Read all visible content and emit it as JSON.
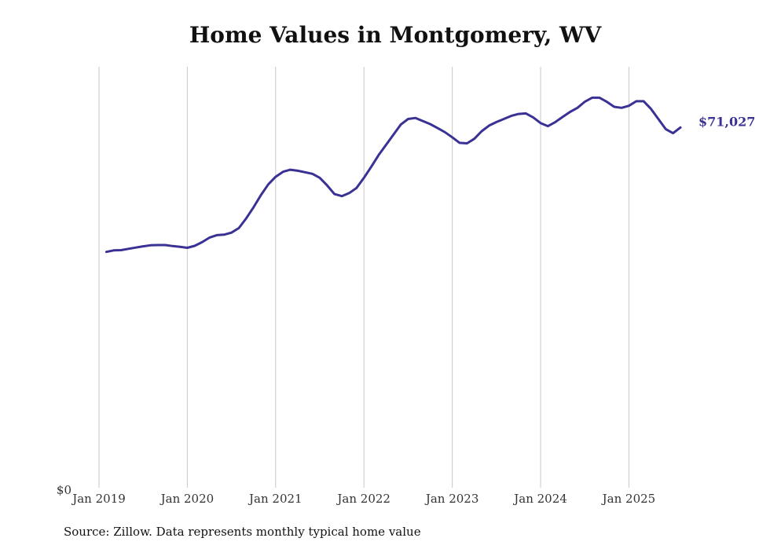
{
  "chart_data": {
    "type": "line",
    "title": "Home Values in Montgomery, WV",
    "xlabel": "",
    "ylabel": "",
    "x_ticks": [
      "Jan 2019",
      "Jan 2020",
      "Jan 2021",
      "Jan 2022",
      "Jan 2023",
      "Jan 2024",
      "Jan 2025"
    ],
    "y_ticks": [
      "$0"
    ],
    "ylim": [
      0,
      83000
    ],
    "grid": "vertical",
    "color": "#3a3194",
    "end_label": "$71,027",
    "series": [
      {
        "x": [
          "2019-02",
          "2019-03",
          "2019-04",
          "2019-05",
          "2019-06",
          "2019-07",
          "2019-08",
          "2019-09",
          "2019-10",
          "2019-11",
          "2019-12",
          "2020-01",
          "2020-02",
          "2020-03",
          "2020-04",
          "2020-05",
          "2020-06",
          "2020-07",
          "2020-08",
          "2020-09",
          "2020-10",
          "2020-11",
          "2020-12",
          "2021-01",
          "2021-02",
          "2021-03",
          "2021-04",
          "2021-05",
          "2021-06",
          "2021-07",
          "2021-08",
          "2021-09",
          "2021-10",
          "2021-11",
          "2021-12",
          "2022-01",
          "2022-02",
          "2022-03",
          "2022-04",
          "2022-05",
          "2022-06",
          "2022-07",
          "2022-08",
          "2022-09",
          "2022-10",
          "2022-11",
          "2022-12",
          "2023-01",
          "2023-02",
          "2023-03",
          "2023-04",
          "2023-05",
          "2023-06",
          "2023-07",
          "2023-08",
          "2023-09",
          "2023-10",
          "2023-11",
          "2023-12",
          "2024-01",
          "2024-02",
          "2024-03",
          "2024-04",
          "2024-05",
          "2024-06",
          "2024-07",
          "2024-08",
          "2024-09",
          "2024-10",
          "2024-11",
          "2024-12",
          "2025-01",
          "2025-02",
          "2025-03",
          "2025-04",
          "2025-05",
          "2025-06",
          "2025-07",
          "2025-08"
        ],
        "values": [
          46500,
          46800,
          46850,
          47100,
          47350,
          47600,
          47800,
          47850,
          47850,
          47650,
          47500,
          47300,
          47700,
          48400,
          49300,
          49800,
          49900,
          50300,
          51200,
          53100,
          55300,
          57700,
          59800,
          61300,
          62300,
          62700,
          62500,
          62200,
          61900,
          61100,
          59600,
          57900,
          57500,
          58100,
          59100,
          61100,
          63300,
          65600,
          67600,
          69600,
          71600,
          72700,
          72900,
          72300,
          71700,
          70900,
          70100,
          69100,
          68000,
          67900,
          68800,
          70300,
          71400,
          72100,
          72700,
          73300,
          73700,
          73800,
          73000,
          71900,
          71300,
          72100,
          73100,
          74100,
          74900,
          76100,
          76900,
          76900,
          76100,
          75100,
          74900,
          75300,
          76200,
          76200,
          74700,
          72700,
          70700,
          69900,
          71027
        ]
      }
    ]
  },
  "source_note": "Source: Zillow. Data represents monthly typical home value"
}
